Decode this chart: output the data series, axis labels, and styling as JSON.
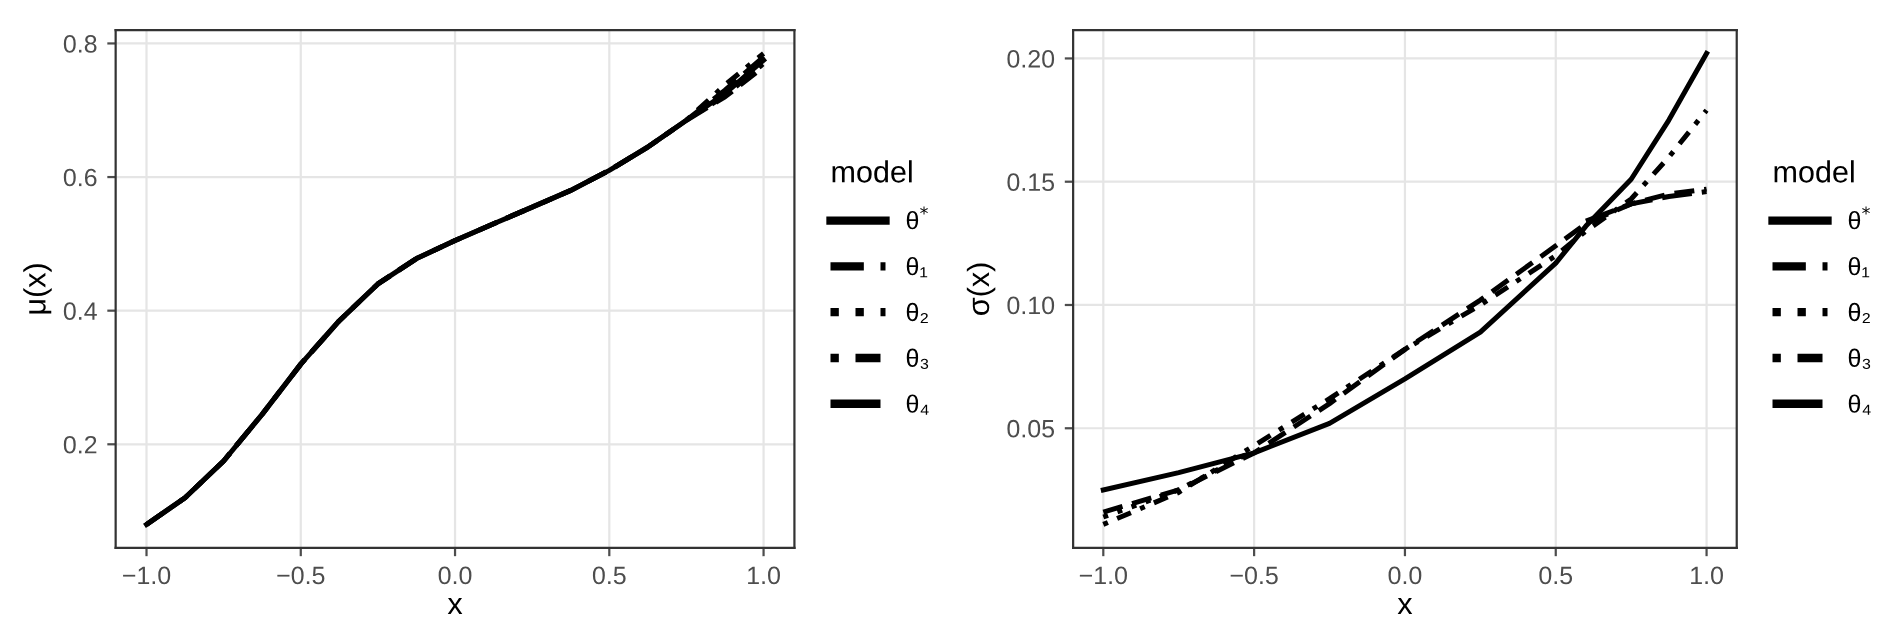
{
  "chart_data": [
    {
      "type": "line",
      "xlabel": "x",
      "ylabel": "μ(x)",
      "legend_title": "model",
      "legend": "right",
      "grid": true,
      "xlim": [
        -1.1,
        1.1
      ],
      "ylim": [
        0.045,
        0.82
      ],
      "xticks": [
        {
          "value": -1.0,
          "label": "−1.0"
        },
        {
          "value": -0.5,
          "label": "−0.5"
        },
        {
          "value": 0.0,
          "label": "0.0"
        },
        {
          "value": 0.5,
          "label": "0.5"
        },
        {
          "value": 1.0,
          "label": "1.0"
        }
      ],
      "yticks": [
        {
          "value": 0.2,
          "label": "0.2"
        },
        {
          "value": 0.4,
          "label": "0.4"
        },
        {
          "value": 0.6,
          "label": "0.6"
        },
        {
          "value": 0.8,
          "label": "0.8"
        }
      ],
      "x": [
        -1,
        -0.875,
        -0.75,
        -0.625,
        -0.5,
        -0.375,
        -0.25,
        -0.125,
        0,
        0.125,
        0.25,
        0.375,
        0.5,
        0.625,
        0.75,
        0.875,
        1
      ],
      "series": [
        {
          "name": "θ$^{*}$",
          "color": "#000000",
          "line_style": "solid",
          "values": [
            0.08,
            0.12,
            0.175,
            0.245,
            0.32,
            0.385,
            0.44,
            0.478,
            0.505,
            0.53,
            0.555,
            0.58,
            0.61,
            0.645,
            0.685,
            0.725,
            0.775
          ]
        },
        {
          "name": "θ₁",
          "color": "#000000",
          "line_style": "dashed",
          "values": [
            0.08,
            0.12,
            0.175,
            0.245,
            0.32,
            0.385,
            0.44,
            0.478,
            0.505,
            0.53,
            0.555,
            0.58,
            0.61,
            0.645,
            0.685,
            0.72,
            0.765
          ]
        },
        {
          "name": "θ₂",
          "color": "#000000",
          "line_style": "dotted",
          "values": [
            null,
            null,
            null,
            null,
            null,
            null,
            null,
            null,
            null,
            null,
            null,
            null,
            null,
            null,
            0.685,
            0.722,
            0.77
          ]
        },
        {
          "name": "θ₃",
          "color": "#000000",
          "line_style": "dashdot",
          "values": [
            null,
            null,
            null,
            null,
            null,
            null,
            null,
            null,
            null,
            null,
            null,
            null,
            null,
            null,
            0.685,
            0.738,
            0.785
          ]
        },
        {
          "name": "θ₄",
          "color": "#000000",
          "line_style": "longdash",
          "values": [
            0.08,
            0.12,
            0.175,
            0.245,
            0.32,
            0.385,
            0.44,
            0.478,
            0.505,
            0.53,
            0.555,
            0.58,
            0.61,
            0.645,
            0.685,
            0.73,
            0.78
          ]
        }
      ]
    },
    {
      "type": "line",
      "xlabel": "x",
      "ylabel": "σ(x)",
      "legend_title": "model",
      "legend": "right",
      "grid": true,
      "xlim": [
        -1.1,
        1.1
      ],
      "ylim": [
        0.0015,
        0.2115
      ],
      "xticks": [
        {
          "value": -1.0,
          "label": "−1.0"
        },
        {
          "value": -0.5,
          "label": "−0.5"
        },
        {
          "value": 0.0,
          "label": "0.0"
        },
        {
          "value": 0.5,
          "label": "0.5"
        },
        {
          "value": 1.0,
          "label": "1.0"
        }
      ],
      "yticks": [
        {
          "value": 0.05,
          "label": "0.05"
        },
        {
          "value": 0.1,
          "label": "0.10"
        },
        {
          "value": 0.15,
          "label": "0.15"
        },
        {
          "value": 0.2,
          "label": "0.20"
        }
      ],
      "x": [
        -1,
        -0.75,
        -0.5,
        -0.25,
        0,
        0.25,
        0.5,
        0.6,
        0.75,
        0.875,
        1
      ],
      "series": [
        {
          "name": "θ$^{*}$",
          "color": "#000000",
          "line_style": "solid",
          "values": [
            0.025,
            0.032,
            0.04,
            0.052,
            0.07,
            0.089,
            0.117,
            0.132,
            0.151,
            0.175,
            0.202
          ]
        },
        {
          "name": "θ₁",
          "color": "#000000",
          "line_style": "dashed",
          "values": [
            0.016,
            0.025,
            0.04,
            0.06,
            0.082,
            0.102,
            0.124,
            0.133,
            0.141,
            0.145,
            0.147
          ]
        },
        {
          "name": "θ₂",
          "color": "#000000",
          "line_style": "dotted",
          "values": [
            0.014,
            0.025,
            0.041,
            null,
            null,
            null,
            null,
            null,
            null,
            null,
            null
          ]
        },
        {
          "name": "θ₃",
          "color": "#000000",
          "line_style": "dashdot",
          "values": [
            0.011,
            0.024,
            0.043,
            0.062,
            0.082,
            0.1,
            0.12,
            0.13,
            0.143,
            0.16,
            0.179
          ]
        },
        {
          "name": "θ₄",
          "color": "#000000",
          "line_style": "longdash",
          "values": [
            null,
            null,
            null,
            null,
            null,
            null,
            null,
            0.134,
            0.141,
            0.144,
            0.146
          ]
        }
      ]
    }
  ]
}
